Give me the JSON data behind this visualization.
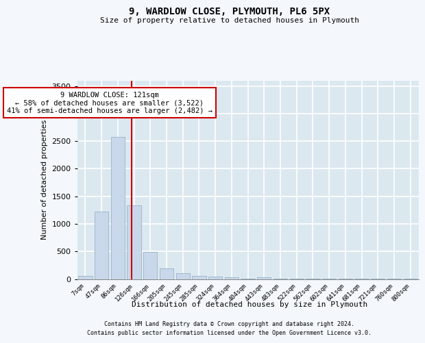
{
  "title": "9, WARDLOW CLOSE, PLYMOUTH, PL6 5PX",
  "subtitle": "Size of property relative to detached houses in Plymouth",
  "xlabel": "Distribution of detached houses by size in Plymouth",
  "ylabel": "Number of detached properties",
  "bar_color": "#c8d8ea",
  "bar_edge_color": "#a0b8cc",
  "background_color": "#dce8f0",
  "fig_background_color": "#f4f8fc",
  "grid_color": "#ffffff",
  "bin_labels": [
    "7sqm",
    "47sqm",
    "86sqm",
    "126sqm",
    "166sqm",
    "205sqm",
    "245sqm",
    "285sqm",
    "324sqm",
    "364sqm",
    "404sqm",
    "443sqm",
    "483sqm",
    "522sqm",
    "562sqm",
    "602sqm",
    "641sqm",
    "681sqm",
    "721sqm",
    "760sqm",
    "800sqm"
  ],
  "bar_heights": [
    55,
    1220,
    2580,
    1330,
    490,
    190,
    100,
    55,
    45,
    35,
    8,
    35,
    8,
    8,
    8,
    8,
    8,
    8,
    8,
    8,
    8
  ],
  "ylim": [
    0,
    3600
  ],
  "yticks": [
    0,
    500,
    1000,
    1500,
    2000,
    2500,
    3000,
    3500
  ],
  "property_line_x": 2.87,
  "property_line_color": "#cc0000",
  "annotation_text": "9 WARDLOW CLOSE: 121sqm\n← 58% of detached houses are smaller (3,522)\n41% of semi-detached houses are larger (2,482) →",
  "annotation_box_color": "#cc0000",
  "footnote1": "Contains HM Land Registry data © Crown copyright and database right 2024.",
  "footnote2": "Contains public sector information licensed under the Open Government Licence v3.0."
}
